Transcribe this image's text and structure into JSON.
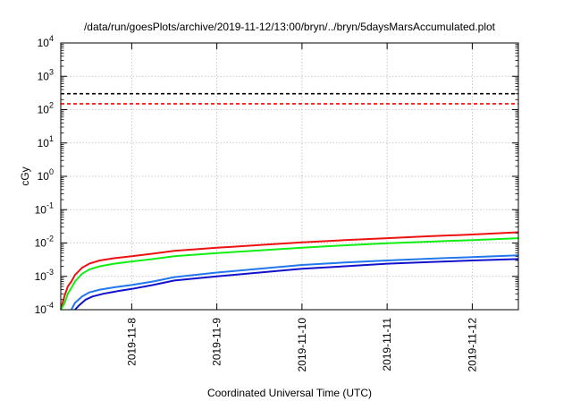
{
  "chart_data": {
    "type": "line",
    "title": "/data/run/goesPlots/archive/2019-11-12/13:00/bryn/../bryn/5daysMarsAccumulated.plot",
    "xlabel": "Coordinated Universal Time (UTC)",
    "ylabel": "cGy",
    "xscale": "time",
    "xlim": [
      "2019-11-07T04:00",
      "2019-11-12T13:00"
    ],
    "yscale": "log",
    "ylim": [
      0.0001,
      10000
    ],
    "xticks": [
      "2019-11-8",
      "2019-11-9",
      "2019-11-10",
      "2019-11-11",
      "2019-11-12"
    ],
    "yticks": [
      {
        "base": "10",
        "exp": "4"
      },
      {
        "base": "10",
        "exp": "3"
      },
      {
        "base": "10",
        "exp": "2"
      },
      {
        "base": "10",
        "exp": "1"
      },
      {
        "base": "10",
        "exp": "0"
      },
      {
        "base": "10",
        "exp": "-1"
      },
      {
        "base": "10",
        "exp": "-2"
      },
      {
        "base": "10",
        "exp": "-3"
      },
      {
        "base": "10",
        "exp": "-4"
      }
    ],
    "grid": true,
    "reference_lines": [
      {
        "y": 300,
        "color": "#000000",
        "style": "dashed"
      },
      {
        "y": 150,
        "color": "#ff0000",
        "style": "dashed"
      }
    ],
    "series": [
      {
        "color": "#ee1111",
        "x": [
          "2019-11-07T04:00",
          "2019-11-07T05:00",
          "2019-11-07T06:00",
          "2019-11-07T07:00",
          "2019-11-07T08:00",
          "2019-11-07T10:00",
          "2019-11-07T12:00",
          "2019-11-07T15:00",
          "2019-11-07T19:00",
          "2019-11-08T00:00",
          "2019-11-08T06:00",
          "2019-11-08T12:00",
          "2019-11-09T00:00",
          "2019-11-09T12:00",
          "2019-11-10T00:00",
          "2019-11-10T12:00",
          "2019-11-11T00:00",
          "2019-11-11T12:00",
          "2019-11-12T00:00",
          "2019-11-12T13:00"
        ],
        "values": [
          0.0001,
          0.00025,
          0.0005,
          0.0007,
          0.0011,
          0.0018,
          0.0024,
          0.003,
          0.0035,
          0.004,
          0.0048,
          0.0058,
          0.0072,
          0.0087,
          0.0105,
          0.0122,
          0.014,
          0.016,
          0.018,
          0.021
        ]
      },
      {
        "color": "#11ee11",
        "x": [
          "2019-11-07T04:00",
          "2019-11-07T05:00",
          "2019-11-07T06:00",
          "2019-11-07T07:00",
          "2019-11-07T08:00",
          "2019-11-07T10:00",
          "2019-11-07T12:00",
          "2019-11-07T15:00",
          "2019-11-07T19:00",
          "2019-11-08T00:00",
          "2019-11-08T06:00",
          "2019-11-08T12:00",
          "2019-11-09T00:00",
          "2019-11-09T12:00",
          "2019-11-10T00:00",
          "2019-11-10T12:00",
          "2019-11-11T00:00",
          "2019-11-11T12:00",
          "2019-11-12T00:00",
          "2019-11-12T13:00"
        ],
        "values": [
          0.0001,
          0.00015,
          0.0003,
          0.00045,
          0.0007,
          0.0012,
          0.0016,
          0.002,
          0.0024,
          0.0028,
          0.0033,
          0.004,
          0.005,
          0.006,
          0.0072,
          0.0085,
          0.0098,
          0.011,
          0.0123,
          0.014
        ]
      },
      {
        "color": "#2277ee",
        "x": [
          "2019-11-07T07:00",
          "2019-11-07T08:00",
          "2019-11-07T10:00",
          "2019-11-07T12:00",
          "2019-11-07T15:00",
          "2019-11-07T19:00",
          "2019-11-08T00:00",
          "2019-11-08T06:00",
          "2019-11-08T12:00",
          "2019-11-09T00:00",
          "2019-11-09T12:00",
          "2019-11-10T00:00",
          "2019-11-10T12:00",
          "2019-11-11T00:00",
          "2019-11-11T12:00",
          "2019-11-12T00:00",
          "2019-11-12T13:00"
        ],
        "values": [
          0.0001,
          0.00016,
          0.00025,
          0.00033,
          0.0004,
          0.00047,
          0.00055,
          0.0007,
          0.00095,
          0.0013,
          0.0017,
          0.0022,
          0.0026,
          0.003,
          0.0034,
          0.0038,
          0.0043
        ]
      },
      {
        "color": "#1111cc",
        "x": [
          "2019-11-07T08:00",
          "2019-11-07T09:00",
          "2019-11-07T11:00",
          "2019-11-07T13:00",
          "2019-11-07T16:00",
          "2019-11-07T20:00",
          "2019-11-08T00:00",
          "2019-11-08T06:00",
          "2019-11-08T12:00",
          "2019-11-09T00:00",
          "2019-11-09T12:00",
          "2019-11-10T00:00",
          "2019-11-10T12:00",
          "2019-11-11T00:00",
          "2019-11-11T12:00",
          "2019-11-12T00:00",
          "2019-11-12T13:00"
        ],
        "values": [
          0.0001,
          0.00013,
          0.0002,
          0.00025,
          0.0003,
          0.00036,
          0.00042,
          0.00055,
          0.00075,
          0.001,
          0.0013,
          0.0017,
          0.002,
          0.0024,
          0.0027,
          0.003,
          0.0033
        ]
      }
    ]
  }
}
